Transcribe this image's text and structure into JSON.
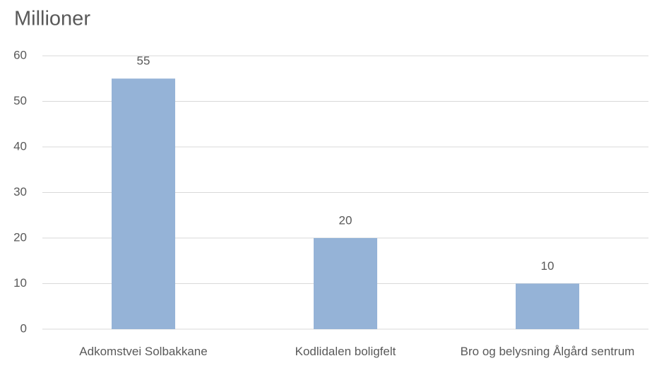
{
  "chart_data": {
    "type": "bar",
    "title": "Millioner",
    "categories": [
      "Adkomstvei Solbakkane",
      "Kodlidalen boligfelt",
      "Bro og belysning Ålgård sentrum"
    ],
    "values": [
      55,
      20,
      10
    ],
    "color": "#95b3d7",
    "ylim": [
      0,
      60
    ],
    "yticks": [
      0,
      10,
      20,
      30,
      40,
      50,
      60
    ],
    "grid": true
  }
}
